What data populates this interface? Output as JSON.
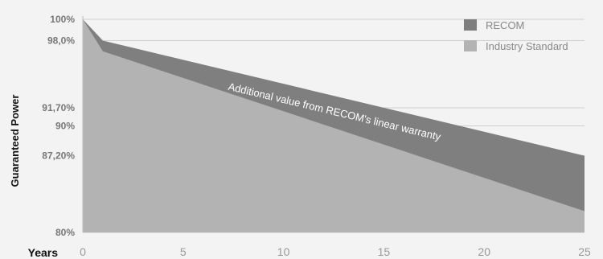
{
  "chart_data": {
    "type": "area",
    "xlabel": "Years",
    "ylabel": "Guaranteed Power",
    "xlim": [
      0,
      25
    ],
    "ylim": [
      80,
      100
    ],
    "x_ticks": [
      {
        "value": 0,
        "label": "0"
      },
      {
        "value": 5,
        "label": "5"
      },
      {
        "value": 10,
        "label": "10"
      },
      {
        "value": 15,
        "label": "15"
      },
      {
        "value": 20,
        "label": "20"
      },
      {
        "value": 25,
        "label": "25"
      }
    ],
    "y_ticks": [
      {
        "value": 100,
        "label": "100%"
      },
      {
        "value": 98.0,
        "label": "98,0%"
      },
      {
        "value": 91.7,
        "label": "91,70%"
      },
      {
        "value": 90,
        "label": "90%"
      },
      {
        "value": 87.2,
        "label": "87,20%"
      },
      {
        "value": 80,
        "label": "80%"
      }
    ],
    "series": [
      {
        "name": "RECOM",
        "color": "#7f7f7f",
        "x": [
          0,
          1,
          25
        ],
        "values": [
          100,
          98.0,
          87.2
        ]
      },
      {
        "name": "Industry Standard",
        "color": "#b3b3b3",
        "x": [
          0,
          1,
          25
        ],
        "values": [
          100,
          97.0,
          82.0
        ]
      }
    ],
    "annotation": "Additional value from RECOM's linear warranty",
    "legend_position": "top-right",
    "grid": "horizontal"
  }
}
